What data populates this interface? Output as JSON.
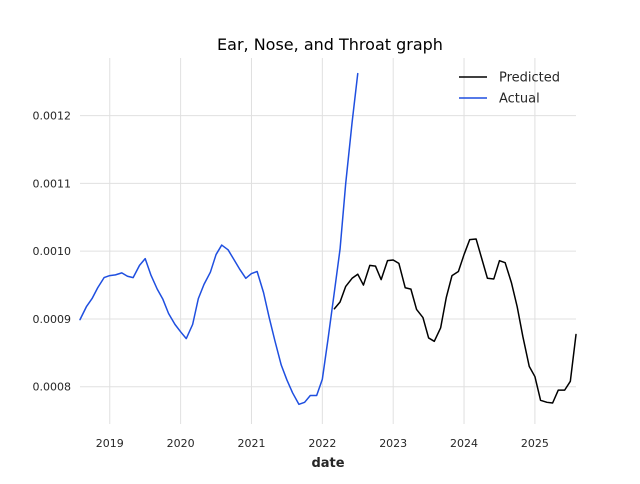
{
  "chart_data": {
    "type": "line",
    "title": "Ear, Nose, and Throat graph",
    "xlabel": "date",
    "ylabel": "",
    "x_range": [
      2018.58,
      2025.58
    ],
    "ylim": [
      0.000745,
      0.001285
    ],
    "x_ticks": [
      {
        "value": 2019,
        "label": "2019"
      },
      {
        "value": 2020,
        "label": "2020"
      },
      {
        "value": 2021,
        "label": "2021"
      },
      {
        "value": 2022,
        "label": "2022"
      },
      {
        "value": 2023,
        "label": "2023"
      },
      {
        "value": 2024,
        "label": "2024"
      },
      {
        "value": 2025,
        "label": "2025"
      }
    ],
    "y_ticks": [
      {
        "value": 0.0008,
        "label": "0.0008"
      },
      {
        "value": 0.0009,
        "label": "0.0009"
      },
      {
        "value": 0.001,
        "label": "0.0010"
      },
      {
        "value": 0.0011,
        "label": "0.0011"
      },
      {
        "value": 0.0012,
        "label": "0.0012"
      }
    ],
    "grid": true,
    "legend_position": "top-right",
    "colors": {
      "Actual": "#1f4fe0",
      "Predicted": "#000000",
      "grid": "#e0e0e0",
      "text": "#262626"
    },
    "series": [
      {
        "name": "Predicted",
        "x": [
          2022.17,
          2022.25,
          2022.33,
          2022.42,
          2022.5,
          2022.58,
          2022.67,
          2022.75,
          2022.83,
          2022.92,
          2023.0,
          2023.08,
          2023.17,
          2023.25,
          2023.33,
          2023.42,
          2023.5,
          2023.58,
          2023.67,
          2023.75,
          2023.83,
          2023.92,
          2024.0,
          2024.08,
          2024.17,
          2024.25,
          2024.33,
          2024.42,
          2024.5,
          2024.58,
          2024.67,
          2024.75,
          2024.83,
          2024.92,
          2025.0,
          2025.08,
          2025.17,
          2025.25,
          2025.33,
          2025.42,
          2025.5,
          2025.58
        ],
        "values": [
          0.000915,
          0.000925,
          0.000948,
          0.00096,
          0.000966,
          0.00095,
          0.000979,
          0.000978,
          0.000958,
          0.000986,
          0.000987,
          0.000982,
          0.000946,
          0.000944,
          0.000914,
          0.000902,
          0.000872,
          0.000867,
          0.000887,
          0.000932,
          0.000964,
          0.00097,
          0.000995,
          0.001017,
          0.001018,
          0.000989,
          0.00096,
          0.000959,
          0.000986,
          0.000983,
          0.000953,
          0.000918,
          0.000874,
          0.00083,
          0.000815,
          0.00078,
          0.000777,
          0.000776,
          0.000795,
          0.000795,
          0.000808,
          0.000877
        ]
      },
      {
        "name": "Actual",
        "x": [
          2018.58,
          2018.67,
          2018.75,
          2018.83,
          2018.92,
          2019.0,
          2019.08,
          2019.17,
          2019.25,
          2019.33,
          2019.42,
          2019.5,
          2019.58,
          2019.67,
          2019.75,
          2019.83,
          2019.92,
          2020.0,
          2020.08,
          2020.17,
          2020.25,
          2020.33,
          2020.42,
          2020.5,
          2020.58,
          2020.67,
          2020.75,
          2020.83,
          2020.92,
          2021.0,
          2021.08,
          2021.17,
          2021.25,
          2021.33,
          2021.42,
          2021.5,
          2021.58,
          2021.67,
          2021.75,
          2021.83,
          2021.92,
          2022.0,
          2022.08,
          2022.17,
          2022.25,
          2022.33,
          2022.42,
          2022.5
        ],
        "values": [
          0.000899,
          0.000918,
          0.00093,
          0.000946,
          0.000961,
          0.000964,
          0.000965,
          0.000968,
          0.000963,
          0.000961,
          0.000979,
          0.000989,
          0.000965,
          0.000944,
          0.000929,
          0.000908,
          0.000892,
          0.000881,
          0.000871,
          0.000892,
          0.00093,
          0.000951,
          0.000969,
          0.000995,
          0.001009,
          0.001002,
          0.000988,
          0.000974,
          0.00096,
          0.000967,
          0.00097,
          0.000939,
          0.000902,
          0.000868,
          0.000832,
          0.00081,
          0.000791,
          0.000774,
          0.000777,
          0.000787,
          0.000787,
          0.000811,
          0.00087,
          0.00094,
          0.001003,
          0.0011,
          0.00119,
          0.001262
        ]
      }
    ]
  }
}
